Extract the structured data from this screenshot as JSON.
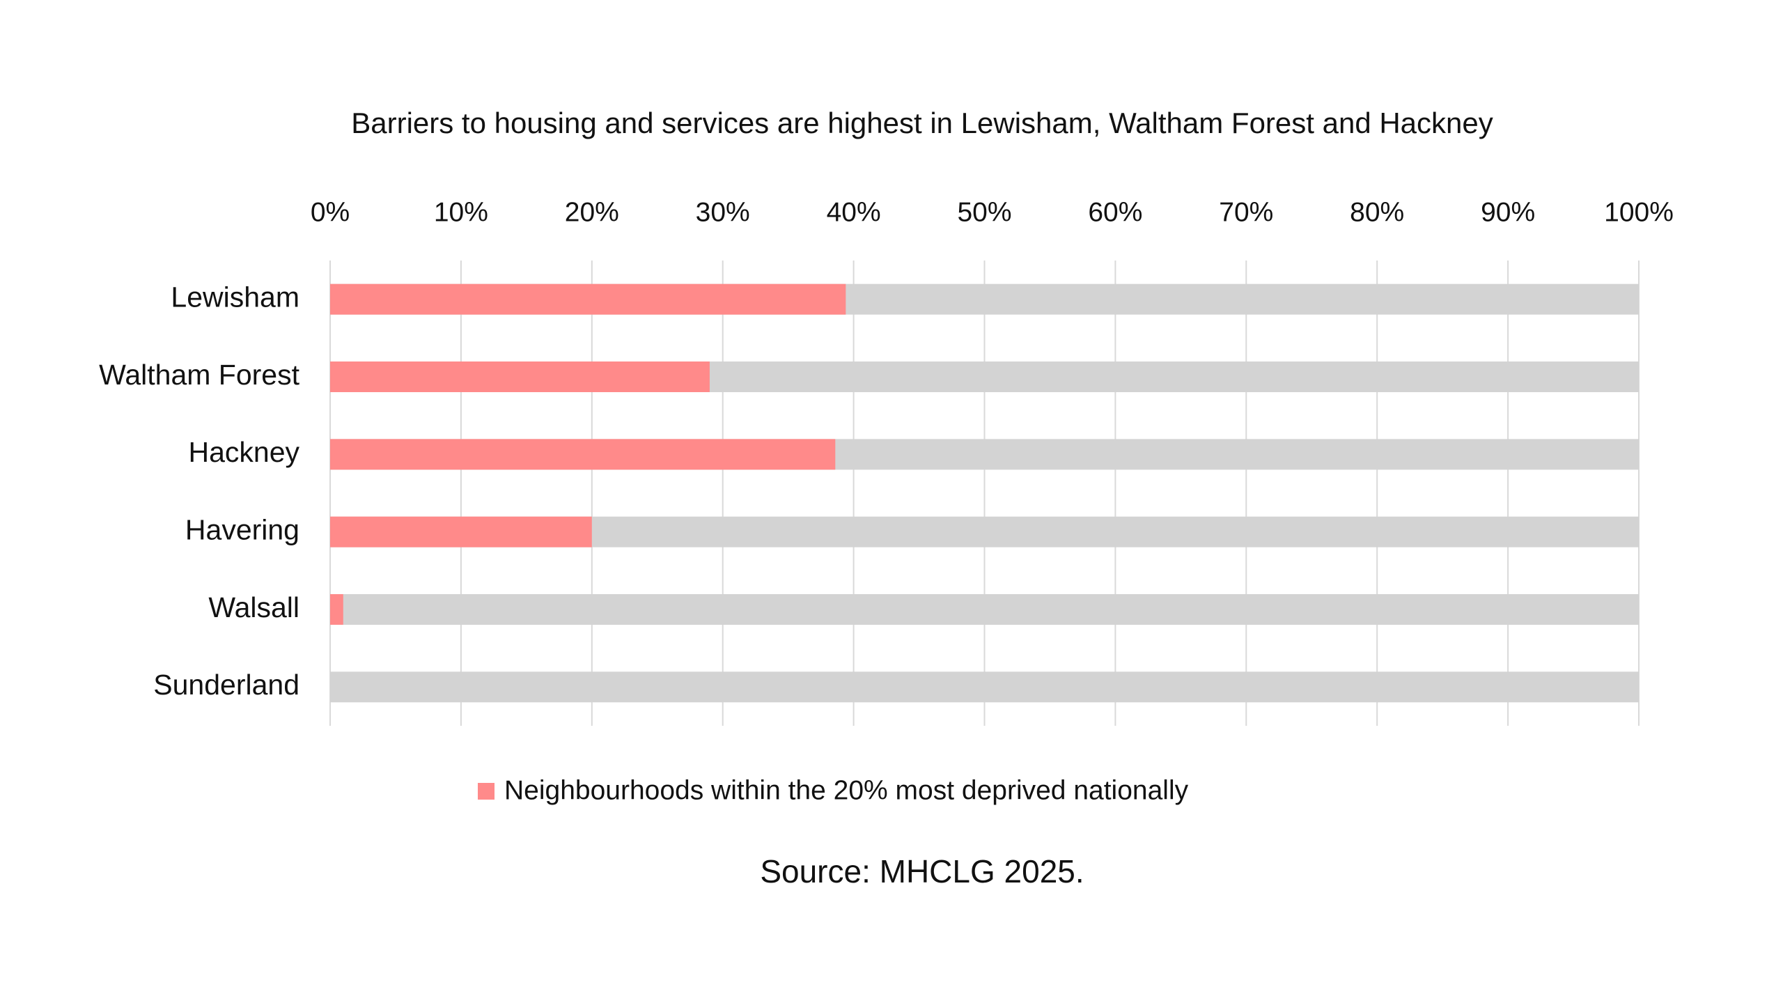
{
  "chart_data": {
    "type": "stacked-bar-horizontal",
    "title": "Barriers to housing and services are highest in Lewisham, Waltham Forest and Hackney",
    "categories": [
      "Lewisham",
      "Waltham Forest",
      "Hackney",
      "Havering",
      "Walsall",
      "Sunderland"
    ],
    "series": [
      {
        "name": "Neighbourhoods within the 20% most deprived nationally",
        "color": "#ff8a8a",
        "values": [
          39.4,
          29,
          38.6,
          20,
          1,
          0
        ]
      }
    ],
    "track_color": "#d3d3d3",
    "xlim": [
      0,
      100
    ],
    "xticks": [
      {
        "value": 0,
        "label": "0%"
      },
      {
        "value": 10,
        "label": "10%"
      },
      {
        "value": 20,
        "label": "20%"
      },
      {
        "value": 30,
        "label": "30%"
      },
      {
        "value": 40,
        "label": "40%"
      },
      {
        "value": 50,
        "label": "50%"
      },
      {
        "value": 60,
        "label": "60%"
      },
      {
        "value": 70,
        "label": "70%"
      },
      {
        "value": 80,
        "label": "80%"
      },
      {
        "value": 90,
        "label": "90%"
      },
      {
        "value": 100,
        "label": "100%"
      }
    ],
    "grid": true,
    "legend": "bottom",
    "source": "Source: MHCLG 2025."
  }
}
